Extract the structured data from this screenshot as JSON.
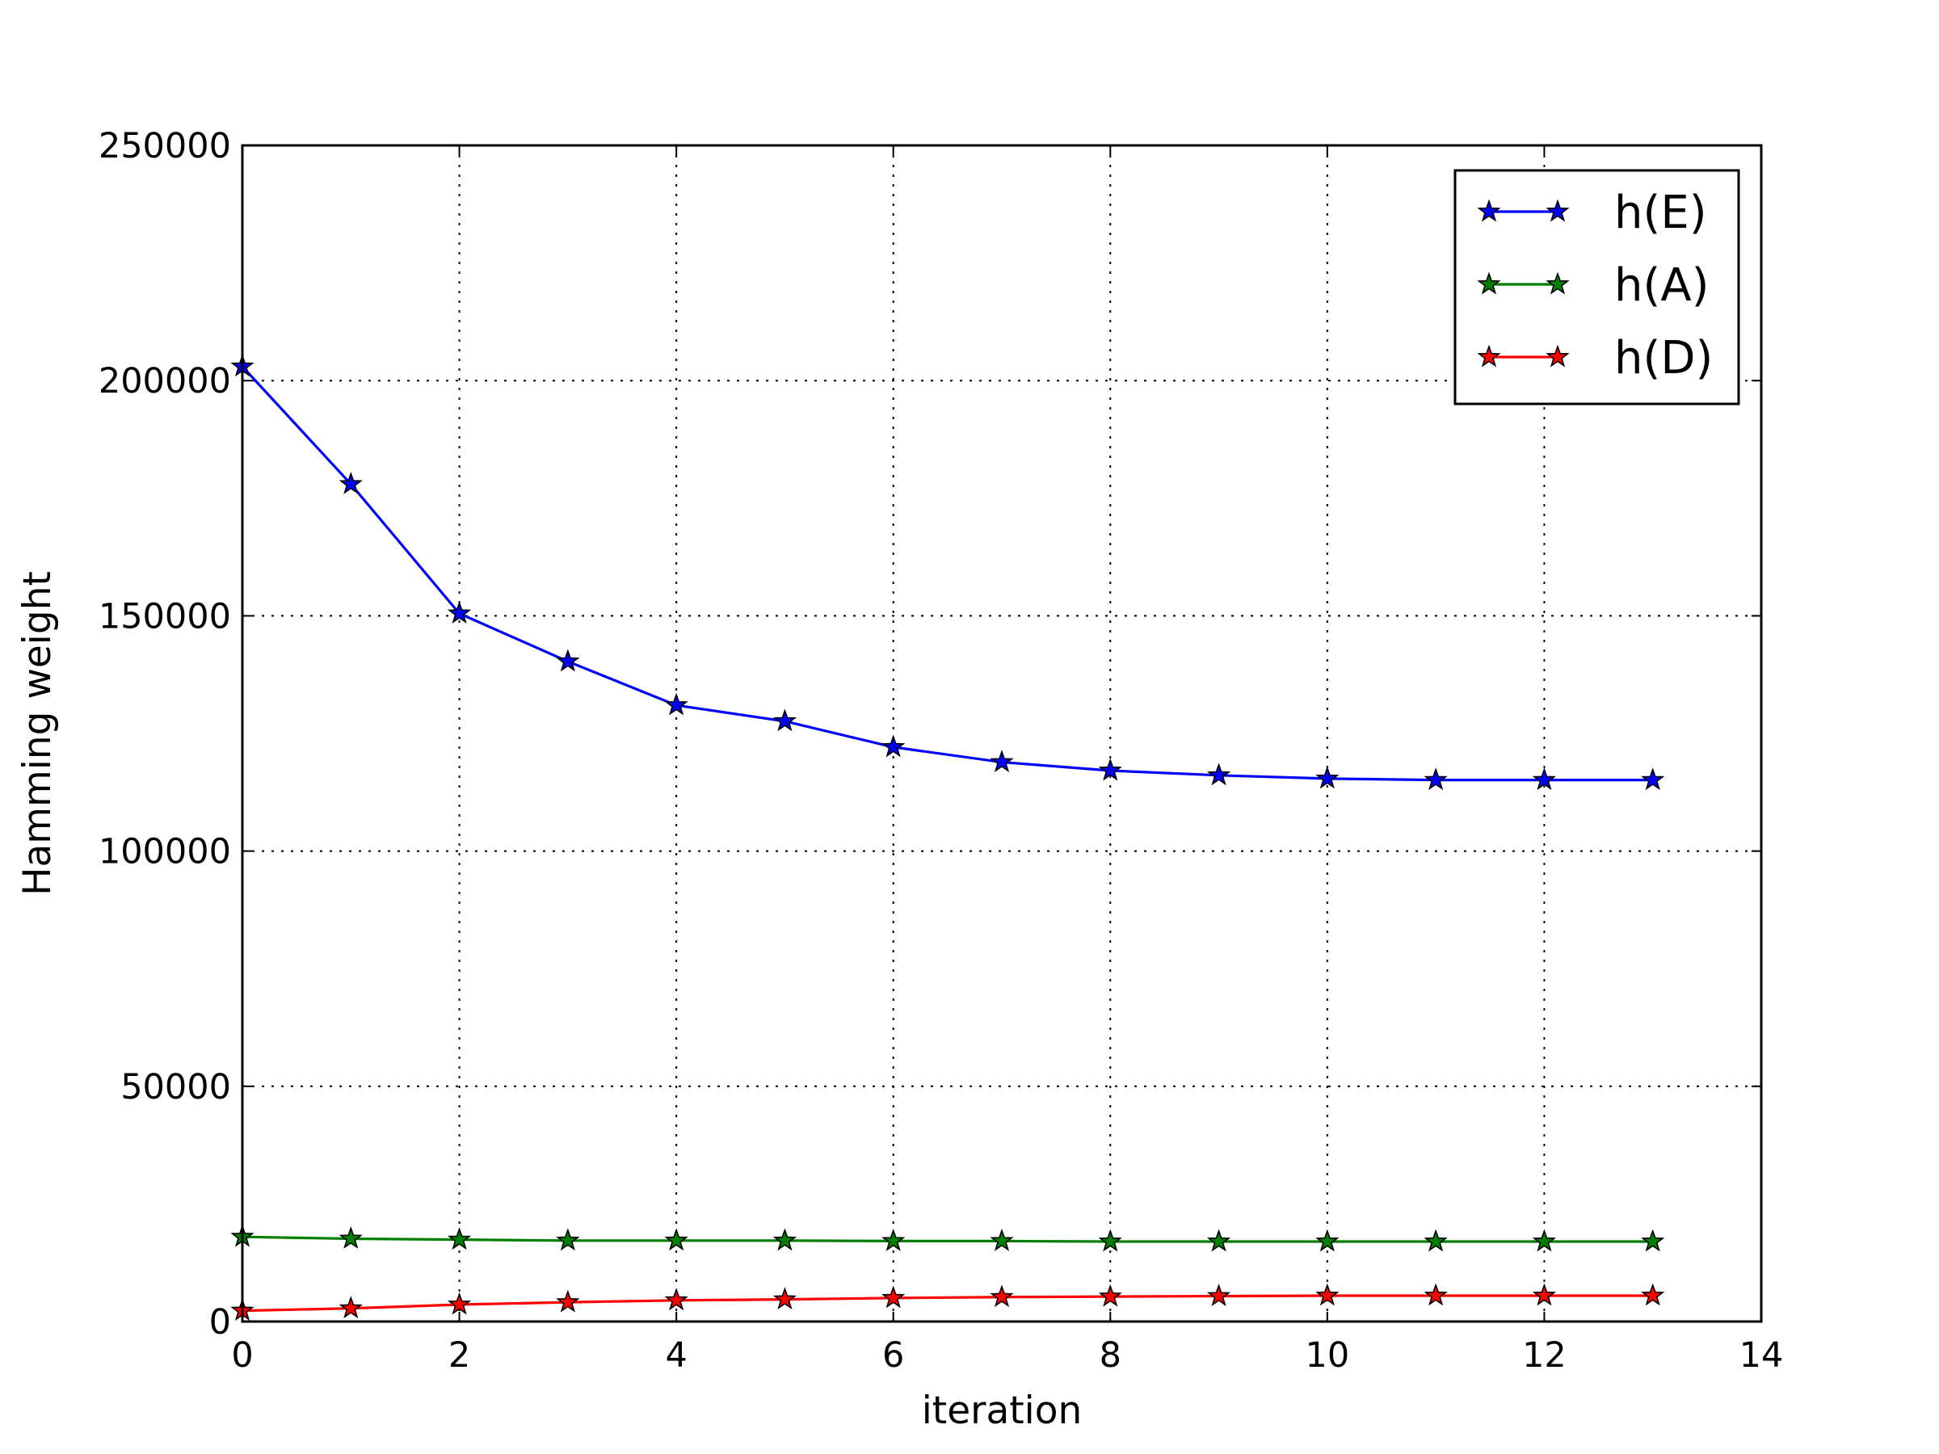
{
  "chart_data": {
    "type": "line",
    "title": "",
    "xlabel": "iteration",
    "ylabel": "Hamming weight",
    "xlim": [
      0,
      14
    ],
    "ylim": [
      0,
      250000
    ],
    "xticks": [
      0,
      2,
      4,
      6,
      8,
      10,
      12,
      14
    ],
    "yticks": [
      0,
      50000,
      100000,
      150000,
      200000,
      250000
    ],
    "grid": true,
    "legend_position": "top-right",
    "marker": "star",
    "x": [
      0,
      1,
      2,
      3,
      4,
      5,
      6,
      7,
      8,
      9,
      10,
      11,
      12,
      13
    ],
    "series": [
      {
        "name": "h(E)",
        "color": "#0000ff",
        "values": [
          203000,
          178000,
          150500,
          140300,
          131000,
          127600,
          122100,
          118900,
          117100,
          116100,
          115400,
          115100,
          115100,
          115100
        ]
      },
      {
        "name": "h(A)",
        "color": "#008000",
        "values": [
          18000,
          17600,
          17400,
          17200,
          17200,
          17200,
          17100,
          17100,
          17000,
          17000,
          17000,
          17000,
          17000,
          17000
        ]
      },
      {
        "name": "h(D)",
        "color": "#ff0000",
        "values": [
          2300,
          2800,
          3600,
          4100,
          4500,
          4700,
          5000,
          5200,
          5300,
          5400,
          5500,
          5500,
          5500,
          5500
        ]
      }
    ]
  }
}
